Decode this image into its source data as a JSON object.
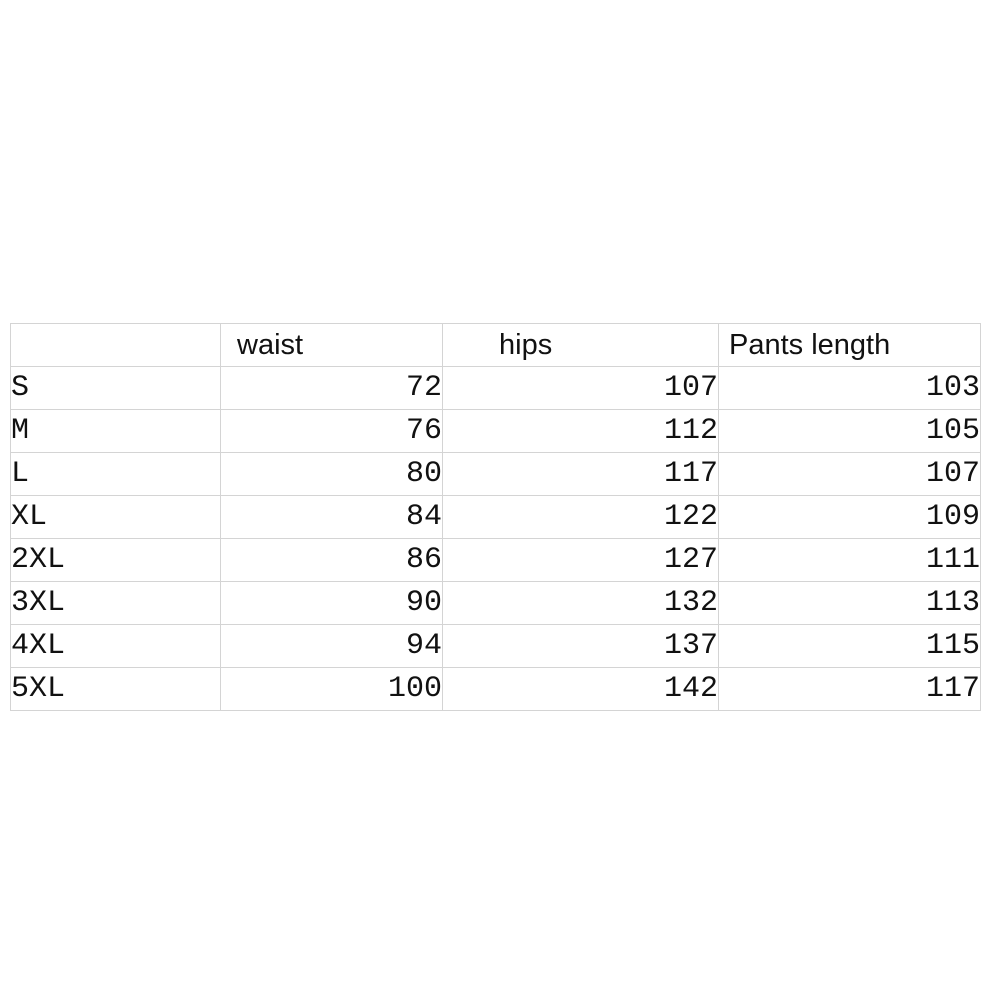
{
  "table": {
    "headers": [
      "",
      "waist",
      "hips",
      "Pants length"
    ],
    "rows": [
      {
        "size": "S",
        "waist": "72",
        "hips": "107",
        "length": "103"
      },
      {
        "size": "M",
        "waist": "76",
        "hips": "112",
        "length": "105"
      },
      {
        "size": "L",
        "waist": "80",
        "hips": "117",
        "length": "107"
      },
      {
        "size": "XL",
        "waist": "84",
        "hips": "122",
        "length": "109"
      },
      {
        "size": "2XL",
        "waist": "86",
        "hips": "127",
        "length": "111"
      },
      {
        "size": "3XL",
        "waist": "90",
        "hips": "132",
        "length": "113"
      },
      {
        "size": "4XL",
        "waist": "94",
        "hips": "137",
        "length": "115"
      },
      {
        "size": "5XL",
        "waist": "100",
        "hips": "142",
        "length": "117"
      }
    ]
  },
  "colors": {
    "grid_line": "#d4d4d4",
    "text": "#111111",
    "background": "#ffffff"
  }
}
